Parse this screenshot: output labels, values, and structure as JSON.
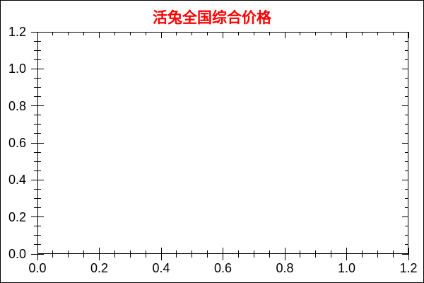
{
  "window": {
    "background": "#ffffff",
    "border_color": "#000000"
  },
  "chart_data": {
    "type": "line",
    "title": "活兔全国综合价格",
    "title_color": "#ff0000",
    "axis_color": "#000000",
    "tick_label_color": "#000000",
    "series": [],
    "grid": false,
    "legend": false,
    "x_axis": {
      "min": 0.0,
      "max": 1.2,
      "major_step": 0.2,
      "minor_step": 0.05,
      "tick_labels": [
        "0.0",
        "0.2",
        "0.4",
        "0.6",
        "0.8",
        "1.0",
        "1.2"
      ]
    },
    "y_axis": {
      "min": 0.0,
      "max": 1.2,
      "major_step": 0.2,
      "minor_step": 0.05,
      "tick_labels": [
        "0.0",
        "0.2",
        "0.4",
        "0.6",
        "0.8",
        "1.0",
        "1.2"
      ]
    }
  }
}
